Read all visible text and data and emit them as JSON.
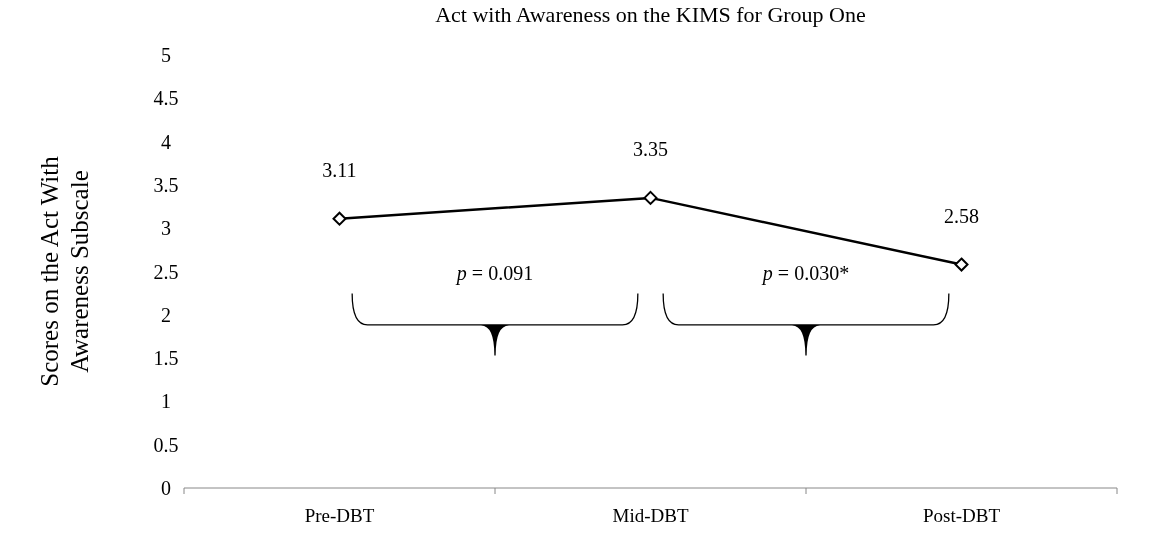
{
  "chart_data": {
    "type": "line",
    "title": "Act with Awareness on the KIMS for Group One",
    "ylabel": "Scores on the Act With Awareness Subscale",
    "categories": [
      "Pre-DBT",
      "Mid-DBT",
      "Post-DBT"
    ],
    "series": [
      {
        "color": "#000000",
        "values": [
          3.11,
          3.35,
          2.58
        ]
      }
    ],
    "ylim": [
      0,
      5
    ],
    "yticks": [
      0,
      0.5,
      1,
      1.5,
      2,
      2.5,
      3,
      3.5,
      4,
      4.5,
      5
    ],
    "data_labels": true,
    "marker": "diamond",
    "line_style": "solid",
    "grid": false,
    "legend": false,
    "annotations": [
      "p = 0.091",
      "p = 0.030*"
    ]
  }
}
